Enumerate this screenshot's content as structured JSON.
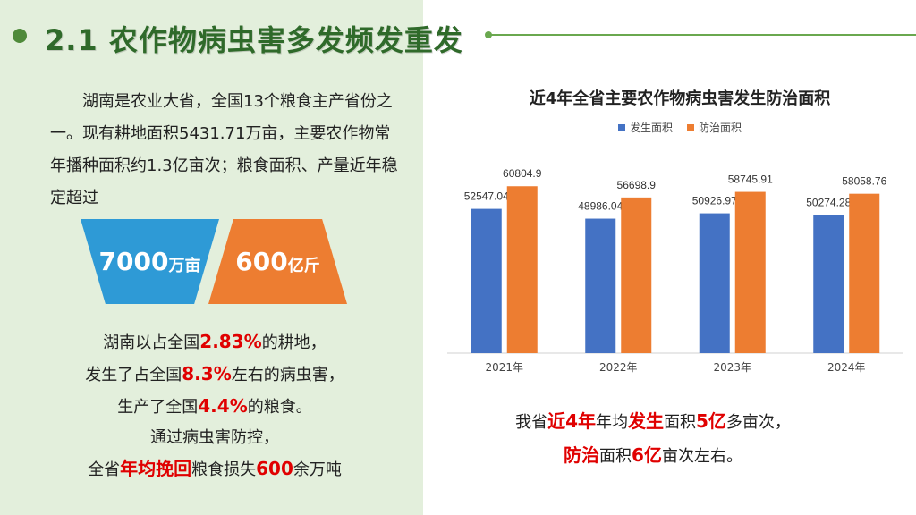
{
  "title": "2.1 农作物病虫害多发频发重发",
  "intro": "湖南是农业大省，全国13个粮食主产省份之一。现有耕地面积5431.71万亩，主要农作物常年播种面积约1.3亿亩次；粮食面积、产量近年稳定超过",
  "badges": [
    {
      "num": "7000",
      "unit": "万亩"
    },
    {
      "num": "600",
      "unit": "亿斤"
    }
  ],
  "summary": {
    "l1a": "湖南以占全国",
    "l1b": "2.83%",
    "l1c": "的耕地，",
    "l2a": "发生了占全国",
    "l2b": "8.3%",
    "l2c": "左右的病虫害，",
    "l3a": "生产了全国",
    "l3b": "4.4%",
    "l3c": "的粮食。",
    "l4": "通过病虫害防控，",
    "l5a": "全省",
    "l5b": "年均挽回",
    "l5c": "粮食损失",
    "l5d": "600",
    "l5e": "余万吨"
  },
  "colors": {
    "blue": "#4472c4",
    "orange": "#ed7d31",
    "red": "#e00000",
    "title_green": "#2f6a2a"
  },
  "chart_data": {
    "type": "bar",
    "title": "近4年全省主要农作物病虫害发生防治面积",
    "categories": [
      "2021年",
      "2022年",
      "2023年",
      "2024年"
    ],
    "series": [
      {
        "name": "发生面积",
        "values": [
          52547.04,
          48986.04,
          50926.97,
          50274.28
        ],
        "labels": [
          "52547.04",
          "48986.04",
          "50926.97",
          "50274.28"
        ],
        "color": "#4472c4"
      },
      {
        "name": "防治面积",
        "values": [
          60804.9,
          56698.9,
          58745.91,
          58058.76
        ],
        "labels": [
          "60804.9",
          "56698.9",
          "58745.91",
          "58058.76"
        ],
        "color": "#ed7d31"
      }
    ],
    "grid": false,
    "legend": "top-center"
  },
  "conclusion": {
    "a": "我省",
    "b": "近4年",
    "c": "年均",
    "d": "发生",
    "e": "面积",
    "f": "5亿",
    "g": "多亩次，",
    "h": "防治",
    "i": "面积",
    "j": "6亿",
    "k": "亩次左右。"
  }
}
